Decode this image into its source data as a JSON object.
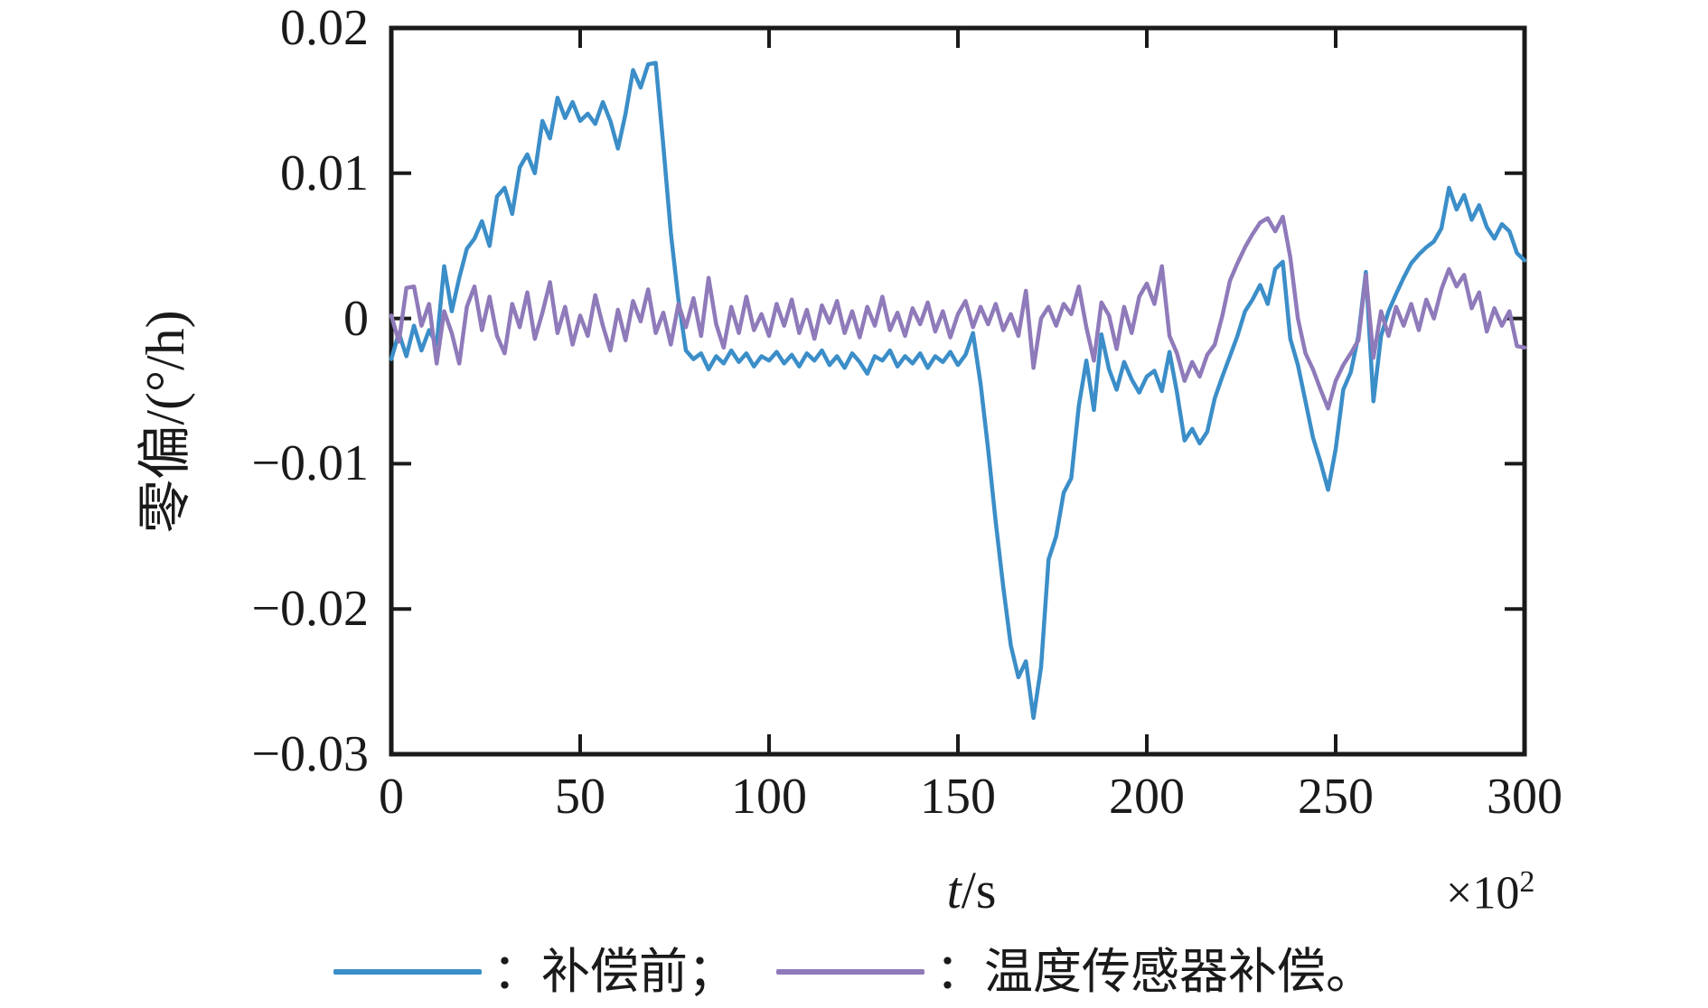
{
  "figure": {
    "background": "#ffffff",
    "axis_color": "#1a1a1a"
  },
  "axes": {
    "ylabel": "零偏/(°/h)",
    "xlabel_var": "t",
    "xlabel_unit": "/s",
    "x_multiplier_base": "×10",
    "x_multiplier_exp": "2",
    "xlim": [
      0,
      300
    ],
    "ylim": [
      -0.03,
      0.02
    ],
    "x_ticks": [
      0,
      50,
      100,
      150,
      200,
      250,
      300
    ],
    "x_tick_labels": [
      "0",
      "50",
      "100",
      "150",
      "200",
      "250",
      "300"
    ],
    "y_ticks": [
      0.02,
      0.01,
      0,
      -0.01,
      -0.02,
      -0.03
    ],
    "y_tick_labels": [
      "0.02",
      "0.01",
      "0",
      "−0.01",
      "−0.02",
      "−0.03"
    ]
  },
  "legend": {
    "items": [
      {
        "label": "：补偿前；",
        "color": "#3B8EC8"
      },
      {
        "label": "：温度传感器补偿。",
        "color": "#8F7ABA"
      }
    ]
  },
  "chart_data": {
    "type": "line",
    "title": "",
    "xlabel": "t/s (×10^2)",
    "ylabel": "零偏/(°/h)",
    "xlim": [
      0,
      300
    ],
    "ylim": [
      -0.03,
      0.02
    ],
    "grid": false,
    "legend_position": "below",
    "x": [
      0,
      2,
      4,
      6,
      8,
      10,
      12,
      14,
      16,
      18,
      20,
      22,
      24,
      26,
      28,
      30,
      32,
      34,
      36,
      38,
      40,
      42,
      44,
      46,
      48,
      50,
      52,
      54,
      56,
      58,
      60,
      62,
      64,
      66,
      68,
      70,
      72,
      74,
      76,
      78,
      80,
      82,
      84,
      86,
      88,
      90,
      92,
      94,
      96,
      98,
      100,
      102,
      104,
      106,
      108,
      110,
      112,
      114,
      116,
      118,
      120,
      122,
      124,
      126,
      128,
      130,
      132,
      134,
      136,
      138,
      140,
      142,
      144,
      146,
      148,
      150,
      152,
      154,
      156,
      158,
      160,
      162,
      164,
      166,
      168,
      170,
      172,
      174,
      176,
      178,
      180,
      182,
      184,
      186,
      188,
      190,
      192,
      194,
      196,
      198,
      200,
      202,
      204,
      206,
      208,
      210,
      212,
      214,
      216,
      218,
      220,
      222,
      224,
      226,
      228,
      230,
      232,
      234,
      236,
      238,
      240,
      242,
      244,
      246,
      248,
      250,
      252,
      254,
      256,
      258,
      260,
      262,
      264,
      266,
      268,
      270,
      272,
      274,
      276,
      278,
      280,
      282,
      284,
      286,
      288,
      290,
      292,
      294,
      296,
      298,
      300
    ],
    "series": [
      {
        "name": "补偿前",
        "color": "#3B8EC8",
        "values": [
          -0.0028,
          -0.001,
          -0.0026,
          -0.0005,
          -0.0022,
          -0.0008,
          -0.0018,
          0.0036,
          0.0005,
          0.0028,
          0.0048,
          0.0055,
          0.0067,
          0.005,
          0.0084,
          0.009,
          0.0072,
          0.0104,
          0.0113,
          0.01,
          0.0136,
          0.0124,
          0.0152,
          0.0138,
          0.0149,
          0.0136,
          0.0141,
          0.0134,
          0.0149,
          0.0136,
          0.0117,
          0.0141,
          0.0171,
          0.0159,
          0.0175,
          0.0176,
          0.0119,
          0.0059,
          0.0013,
          -0.0022,
          -0.0028,
          -0.0024,
          -0.0035,
          -0.0026,
          -0.0031,
          -0.0022,
          -0.003,
          -0.0024,
          -0.0033,
          -0.0026,
          -0.0029,
          -0.0023,
          -0.0031,
          -0.0025,
          -0.0033,
          -0.0024,
          -0.0029,
          -0.0022,
          -0.0032,
          -0.0026,
          -0.0034,
          -0.0024,
          -0.003,
          -0.0038,
          -0.0026,
          -0.0029,
          -0.0022,
          -0.0033,
          -0.0026,
          -0.0031,
          -0.0024,
          -0.0034,
          -0.0026,
          -0.003,
          -0.0023,
          -0.0032,
          -0.0025,
          -0.001,
          -0.0045,
          -0.009,
          -0.014,
          -0.0185,
          -0.0225,
          -0.0247,
          -0.0236,
          -0.0275,
          -0.024,
          -0.0166,
          -0.015,
          -0.012,
          -0.011,
          -0.006,
          -0.0029,
          -0.0063,
          -0.0011,
          -0.0035,
          -0.0049,
          -0.003,
          -0.0042,
          -0.0051,
          -0.004,
          -0.0036,
          -0.005,
          -0.0023,
          -0.0051,
          -0.0084,
          -0.0076,
          -0.0086,
          -0.0078,
          -0.0055,
          -0.004,
          -0.0026,
          -0.0012,
          0.0005,
          0.0013,
          0.0023,
          0.001,
          0.0034,
          0.0039,
          -0.0014,
          -0.0032,
          -0.0057,
          -0.0082,
          -0.0099,
          -0.0118,
          -0.009,
          -0.0049,
          -0.0037,
          -0.0012,
          0.0032,
          -0.0057,
          -0.0012,
          0.0005,
          0.0017,
          0.0028,
          0.0038,
          0.0044,
          0.0049,
          0.0053,
          0.0062,
          0.009,
          0.0075,
          0.0085,
          0.0068,
          0.0078,
          0.0063,
          0.0055,
          0.0065,
          0.006,
          0.0045,
          0.004
        ]
      },
      {
        "name": "温度传感器补偿",
        "color": "#8F7ABA",
        "values": [
          0.0002,
          -0.0016,
          0.0021,
          0.0022,
          -0.0005,
          0.001,
          -0.0031,
          0.0005,
          -0.001,
          -0.0031,
          0.0008,
          0.0022,
          -0.0008,
          0.0015,
          -0.0012,
          -0.0024,
          0.001,
          -0.0006,
          0.0018,
          -0.0014,
          0.0004,
          0.0025,
          -0.001,
          0.0008,
          -0.0018,
          0.0002,
          -0.0012,
          0.0016,
          -0.0005,
          -0.0022,
          0.0006,
          -0.0015,
          0.0012,
          -0.0002,
          0.002,
          -0.001,
          0.0004,
          -0.0018,
          0.001,
          -0.0006,
          0.0014,
          -0.0012,
          0.0028,
          -0.0004,
          -0.002,
          0.0008,
          -0.001,
          0.0015,
          -0.0008,
          0.0003,
          -0.0012,
          0.001,
          -0.0005,
          0.0013,
          -0.001,
          0.0006,
          -0.0014,
          0.0009,
          -0.0003,
          0.0012,
          -0.001,
          0.0005,
          -0.0013,
          0.0008,
          -0.0005,
          0.0015,
          -0.0008,
          0.0004,
          -0.0012,
          0.0007,
          -0.0004,
          0.0011,
          -0.0009,
          0.0005,
          -0.0013,
          0.0003,
          0.0012,
          -0.0006,
          0.0008,
          -0.0004,
          0.001,
          -0.0008,
          0.0003,
          -0.0012,
          0.0019,
          -0.0034,
          0,
          0.0008,
          -0.0005,
          0.001,
          0.0003,
          0.0022,
          -0.0006,
          -0.0029,
          0.0011,
          0.0002,
          -0.0021,
          0.0008,
          -0.001,
          0.0015,
          0.0024,
          0.001,
          0.0036,
          -0.0012,
          -0.0024,
          -0.0043,
          -0.003,
          -0.004,
          -0.0025,
          -0.0018,
          0.0002,
          0.0026,
          0.0038,
          0.0049,
          0.0058,
          0.0066,
          0.0069,
          0.006,
          0.007,
          0.0042,
          0,
          -0.0024,
          -0.0035,
          -0.0049,
          -0.0062,
          -0.0043,
          -0.0032,
          -0.0024,
          -0.0015,
          0.003,
          -0.0027,
          0.0005,
          -0.0012,
          0.0008,
          -0.0005,
          0.001,
          -0.0008,
          0.0013,
          0,
          0.002,
          0.0034,
          0.0022,
          0.003,
          0.0007,
          0.0018,
          -0.0009,
          0.0007,
          -0.0005,
          0.0005,
          -0.0019,
          -0.002
        ]
      }
    ]
  }
}
